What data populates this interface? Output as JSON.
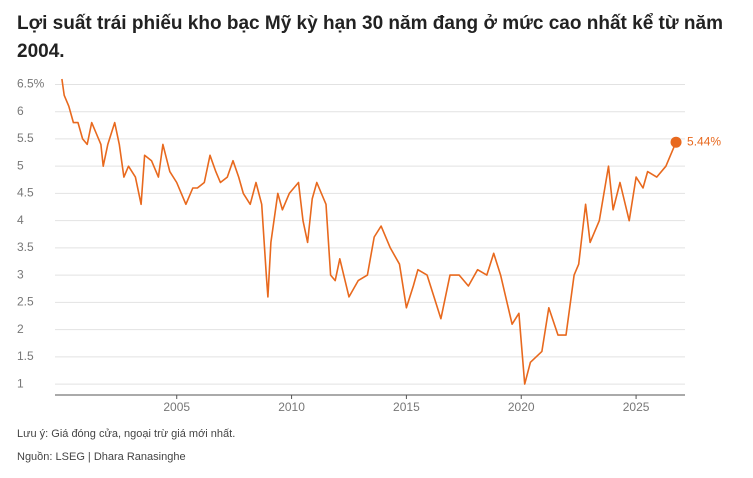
{
  "chart_data": {
    "type": "line",
    "title": "Lợi suất trái phiếu kho bạc Mỹ kỳ hạn 30 năm đang ở mức cao nhất kể từ năm 2004.",
    "note": "Lưu ý: Giá đóng cửa, ngoại trừ giá mới nhất.",
    "source": "Nguồn: LSEG | Dhara Ranasinghe",
    "x": [
      2000.0,
      2000.1,
      2000.3,
      2000.5,
      2000.7,
      2000.9,
      2001.1,
      2001.3,
      2001.5,
      2001.7,
      2001.8,
      2002.0,
      2002.3,
      2002.5,
      2002.7,
      2002.9,
      2003.2,
      2003.45,
      2003.6,
      2003.9,
      2004.2,
      2004.4,
      2004.7,
      2005.0,
      2005.2,
      2005.4,
      2005.7,
      2005.9,
      2006.2,
      2006.45,
      2006.7,
      2006.9,
      2007.2,
      2007.45,
      2007.7,
      2007.9,
      2008.2,
      2008.45,
      2008.7,
      2008.9,
      2008.97,
      2009.1,
      2009.4,
      2009.6,
      2009.9,
      2010.3,
      2010.5,
      2010.7,
      2010.9,
      2011.1,
      2011.5,
      2011.7,
      2011.9,
      2012.1,
      2012.5,
      2012.9,
      2013.3,
      2013.6,
      2013.9,
      2014.3,
      2014.7,
      2015.0,
      2015.3,
      2015.5,
      2015.9,
      2016.2,
      2016.5,
      2016.9,
      2017.3,
      2017.7,
      2018.1,
      2018.5,
      2018.8,
      2019.1,
      2019.6,
      2019.9,
      2020.15,
      2020.4,
      2020.9,
      2021.2,
      2021.6,
      2021.95,
      2022.3,
      2022.5,
      2022.8,
      2023.0,
      2023.4,
      2023.8,
      2024.0,
      2024.3,
      2024.7,
      2025.0,
      2025.3,
      2025.5,
      2025.9,
      2026.3,
      2026.74
    ],
    "series": [
      {
        "color": "#e8691e",
        "values": [
          6.6,
          6.3,
          6.1,
          5.8,
          5.8,
          5.5,
          5.4,
          5.8,
          5.6,
          5.4,
          5.0,
          5.4,
          5.8,
          5.4,
          4.8,
          5.0,
          4.8,
          4.3,
          5.2,
          5.1,
          4.8,
          5.4,
          4.9,
          4.7,
          4.5,
          4.3,
          4.6,
          4.6,
          4.7,
          5.2,
          4.9,
          4.7,
          4.8,
          5.1,
          4.8,
          4.5,
          4.3,
          4.7,
          4.3,
          3.0,
          2.6,
          3.6,
          4.5,
          4.2,
          4.5,
          4.7,
          4.0,
          3.6,
          4.4,
          4.7,
          4.3,
          3.0,
          2.9,
          3.3,
          2.6,
          2.9,
          3.0,
          3.7,
          3.9,
          3.5,
          3.2,
          2.4,
          2.8,
          3.1,
          3.0,
          2.6,
          2.2,
          3.0,
          3.0,
          2.8,
          3.1,
          3.0,
          3.4,
          3.0,
          2.1,
          2.3,
          1.0,
          1.4,
          1.6,
          2.4,
          1.9,
          1.9,
          3.0,
          3.2,
          4.3,
          3.6,
          4.0,
          5.0,
          4.2,
          4.7,
          4.0,
          4.8,
          4.6,
          4.9,
          4.8,
          5.0,
          5.44
        ],
        "value_labels": [
          null,
          null,
          null,
          null,
          null,
          null,
          null,
          null,
          null,
          null,
          null,
          null,
          null,
          null,
          null,
          null,
          null,
          null,
          null,
          null,
          null,
          null,
          null,
          null,
          null,
          null,
          null,
          null,
          null,
          null,
          null,
          null,
          null,
          null,
          null,
          null,
          null,
          null,
          null,
          null,
          null,
          null,
          null,
          null,
          null,
          null,
          null,
          null,
          null,
          null,
          null,
          null,
          null,
          null,
          null,
          null,
          null,
          null,
          null,
          null,
          null,
          null,
          null,
          null,
          null,
          null,
          null,
          null,
          null,
          null,
          null,
          null,
          null,
          null,
          null,
          null,
          null,
          null,
          null,
          null,
          null,
          null,
          null,
          null,
          null,
          null,
          null,
          null,
          null,
          null,
          null,
          null,
          null,
          null,
          null,
          null,
          "5.44%"
        ]
      }
    ],
    "xlim": [
      1999.7,
      2027.13
    ],
    "xticks": [
      2005,
      2010,
      2015,
      2020,
      2025
    ],
    "ylim": [
      0.8,
      6.6
    ],
    "yticks": [
      1,
      1.5,
      2,
      2.5,
      3,
      3.5,
      4,
      4.5,
      5,
      5.5,
      6,
      {
        "value": 6.5,
        "label": "6.5%"
      }
    ],
    "grid": true
  }
}
